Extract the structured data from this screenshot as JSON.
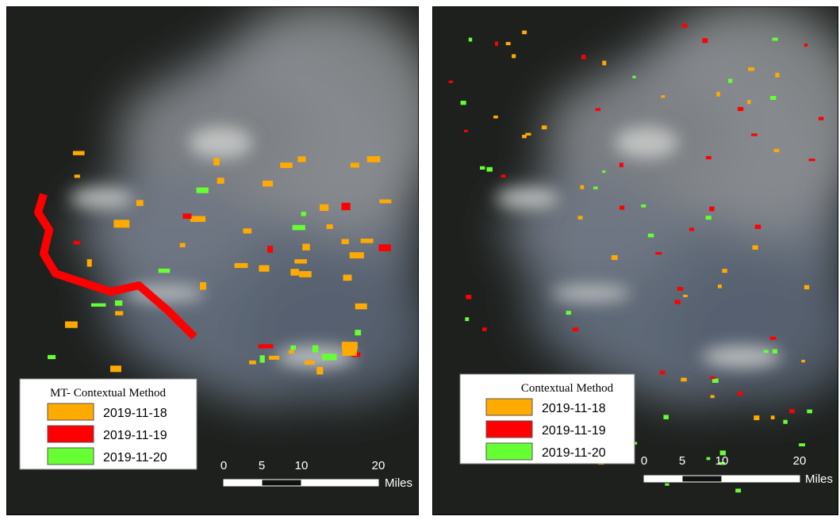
{
  "panels": [
    {
      "legend": {
        "title": "MT- Contextual Method",
        "items": [
          {
            "label": "2019-11-18",
            "color": "#ffaa00"
          },
          {
            "label": "2019-11-19",
            "color": "#ff0000"
          },
          {
            "label": "2019-11-20",
            "color": "#66ff33"
          }
        ]
      },
      "scale_bar": {
        "ticks": [
          "0",
          "5",
          "10",
          "20"
        ],
        "unit": "Miles"
      }
    },
    {
      "legend": {
        "title": "Contextual Method",
        "items": [
          {
            "label": "2019-11-18",
            "color": "#ffaa00"
          },
          {
            "label": "2019-11-19",
            "color": "#ff0000"
          },
          {
            "label": "2019-11-20",
            "color": "#66ff33"
          }
        ]
      },
      "scale_bar": {
        "ticks": [
          "0",
          "5",
          "10",
          "20"
        ],
        "unit": "Miles"
      }
    }
  ]
}
